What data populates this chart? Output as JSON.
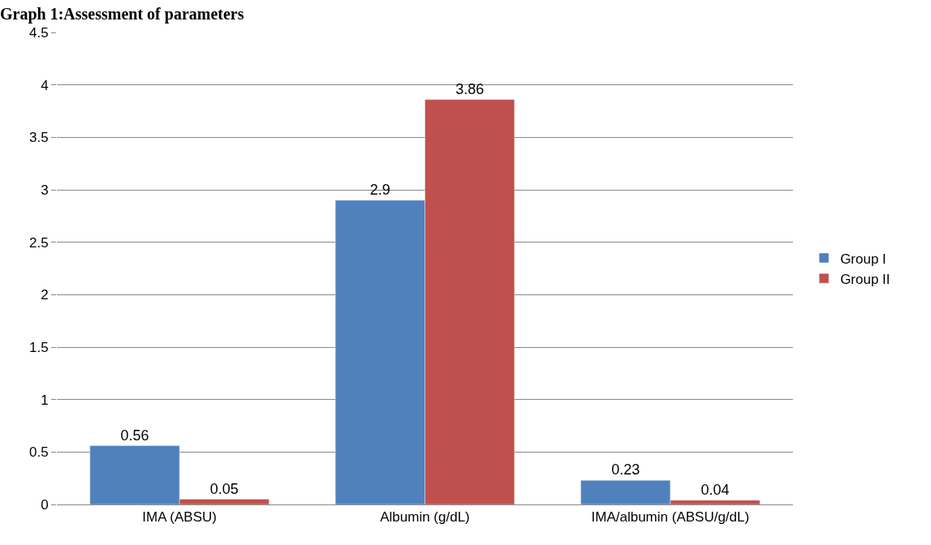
{
  "chart_data": {
    "type": "bar",
    "title": "Graph 1:Assessment of parameters",
    "categories": [
      "IMA (ABSU)",
      "Albumin (g/dL)",
      "IMA/albumin (ABSU/g/dL)"
    ],
    "series": [
      {
        "name": "Group I",
        "color": "#4f81bd",
        "values": [
          0.56,
          2.9,
          0.23
        ]
      },
      {
        "name": "Group II",
        "color": "#c0504d",
        "values": [
          0.05,
          3.86,
          0.04
        ]
      }
    ],
    "ylim": [
      0,
      4.5
    ],
    "yticks": [
      0,
      0.5,
      1,
      1.5,
      2,
      2.5,
      3,
      3.5,
      4,
      4.5
    ],
    "grid": "y",
    "legend": "right",
    "data_labels": true
  }
}
